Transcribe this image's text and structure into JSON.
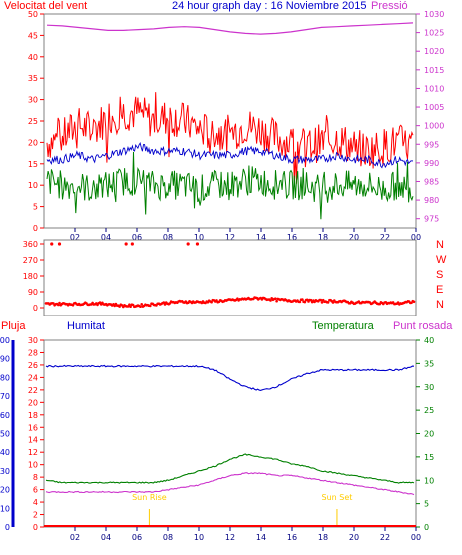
{
  "header": {
    "title": "24 hour graph day : 16 Noviembre 2015",
    "wind_speed_label": "Velocitat del vent",
    "pressure_label": "Pressió"
  },
  "panel2": {
    "directions": [
      "N",
      "W",
      "S",
      "E",
      "N"
    ]
  },
  "panel3": {
    "rain_label": "Pluja",
    "humidity_label": "Humitat",
    "temperature_label": "Temperatura",
    "dewpoint_label": "Punt rosada",
    "sunrise_label": "Sun Rise",
    "sunset_label": "Sun Set"
  },
  "colors": {
    "wind_gust": "#ff0000",
    "wind_avg": "#0000cc",
    "wind_min": "#008000",
    "pressure": "#cc33cc",
    "direction": "#ff0000",
    "humidity": "#0000cc",
    "temperature": "#008000",
    "dewpoint": "#cc33cc",
    "rain": "#ff0000",
    "sun": "#ffcc00"
  },
  "chart_data": [
    {
      "type": "line",
      "title": "24 hour graph day : 16 Noviembre 2015",
      "x_ticks": [
        "02",
        "04",
        "06",
        "08",
        "10",
        "12",
        "14",
        "16",
        "18",
        "20",
        "22",
        "00"
      ],
      "y_left": {
        "label": "Velocitat del vent",
        "ticks": [
          0,
          5,
          10,
          15,
          20,
          25,
          30,
          35,
          40,
          45,
          50
        ],
        "range": [
          0,
          50
        ]
      },
      "y_right": {
        "label": "Pressió",
        "ticks": [
          975,
          980,
          985,
          990,
          995,
          1000,
          1005,
          1010,
          1015,
          1020,
          1025,
          1030
        ],
        "range": [
          972.5,
          1030
        ]
      },
      "series": [
        {
          "name": "gust",
          "axis": "left",
          "values": [
            20,
            21,
            24,
            23,
            26,
            27,
            27,
            25,
            26,
            25,
            23,
            22,
            22,
            24,
            23,
            21,
            20,
            19,
            20,
            21,
            19,
            18,
            19,
            20,
            19
          ]
        },
        {
          "name": "average",
          "axis": "left",
          "values": [
            16,
            16,
            17,
            16,
            17,
            18,
            19,
            18,
            18,
            18,
            17,
            17,
            17,
            18,
            18,
            17,
            16,
            16,
            16,
            17,
            16,
            16,
            15,
            16,
            15
          ]
        },
        {
          "name": "minimum",
          "axis": "left",
          "values": [
            11,
            10,
            10,
            9,
            10,
            11,
            11,
            10,
            10,
            10,
            9,
            10,
            10,
            11,
            11,
            10,
            10,
            10,
            9,
            10,
            10,
            10,
            9,
            10,
            9
          ]
        },
        {
          "name": "pressure",
          "axis": "right",
          "values": [
            1027,
            1026.8,
            1026.4,
            1026,
            1025.6,
            1025.6,
            1025.8,
            1026,
            1026.4,
            1026.6,
            1026.4,
            1025.8,
            1025.2,
            1024.8,
            1024.6,
            1024.8,
            1025.2,
            1025.8,
            1026.4,
            1026.6,
            1026.8,
            1027,
            1027.2,
            1027.4,
            1027.6
          ]
        }
      ]
    },
    {
      "type": "scatter",
      "x_ticks": [
        "02",
        "04",
        "06",
        "08",
        "10",
        "12",
        "14",
        "16",
        "18",
        "20",
        "22",
        "00"
      ],
      "y_left": {
        "ticks": [
          0,
          90,
          180,
          270,
          360
        ],
        "range": [
          0,
          360
        ]
      },
      "series": [
        {
          "name": "direction",
          "x": [
            0.5,
            1.0,
            5.3,
            5.7,
            9.3,
            9.9
          ],
          "values": [
            360,
            360,
            360,
            360,
            360,
            360
          ]
        },
        {
          "name": "direction_main",
          "x": [
            0,
            1,
            2,
            3,
            4,
            5,
            6,
            7,
            8,
            9,
            10,
            11,
            12,
            13,
            14,
            15,
            16,
            17,
            18,
            19,
            20,
            21,
            22,
            23,
            24
          ],
          "values": [
            22,
            22,
            22,
            25,
            22,
            12,
            12,
            20,
            28,
            35,
            32,
            38,
            42,
            50,
            55,
            45,
            42,
            40,
            38,
            38,
            30,
            30,
            28,
            25,
            35
          ]
        }
      ]
    },
    {
      "type": "line",
      "x_ticks": [
        "02",
        "04",
        "06",
        "08",
        "10",
        "12",
        "14",
        "16",
        "18",
        "20",
        "22",
        "00"
      ],
      "y_outer": {
        "label": "Pluja",
        "ticks": [
          0,
          10,
          20,
          30,
          40,
          50,
          60,
          70,
          80,
          90,
          100
        ],
        "range": [
          0,
          100
        ]
      },
      "y_left": {
        "label": "Humitat",
        "ticks": [
          0,
          2,
          4,
          6,
          8,
          10,
          12,
          14,
          16,
          18,
          20,
          22,
          24,
          26,
          28,
          30
        ],
        "range": [
          0,
          30
        ]
      },
      "y_right": {
        "label": "Temperatura",
        "ticks": [
          0,
          5,
          10,
          15,
          20,
          25,
          30,
          35,
          40
        ],
        "range": [
          0,
          40
        ]
      },
      "sun_rise_hour": 6.8,
      "sun_set_hour": 18.9,
      "series": [
        {
          "name": "humidity",
          "axis": "outer",
          "values": [
            86,
            86,
            86,
            86,
            86,
            86,
            86,
            86,
            86,
            86,
            86,
            84,
            79,
            75,
            73,
            75,
            79,
            82,
            84,
            84,
            84,
            84,
            84,
            84,
            86
          ]
        },
        {
          "name": "temperature",
          "axis": "right",
          "values": [
            10,
            9.5,
            9.5,
            9.5,
            9.5,
            9.5,
            9.5,
            9.5,
            10,
            11,
            12,
            13,
            14.5,
            15.5,
            15,
            14.5,
            13.5,
            13,
            12,
            11.5,
            11,
            10.5,
            10,
            9.5,
            9.5
          ]
        },
        {
          "name": "dewpoint",
          "axis": "right",
          "values": [
            7.5,
            7.5,
            7.5,
            7.5,
            7.5,
            7.5,
            7.5,
            7.5,
            8,
            8.5,
            9,
            10,
            11,
            11.5,
            11.5,
            11,
            11,
            10.5,
            10,
            9.5,
            9,
            8.5,
            8,
            7.5,
            7
          ]
        },
        {
          "name": "rain",
          "axis": "outer",
          "values": [
            0,
            0,
            0,
            0,
            0,
            0,
            0,
            0,
            0,
            0,
            0,
            0,
            0,
            0,
            0,
            0,
            0,
            0,
            0,
            0,
            0,
            0,
            0,
            0,
            0
          ]
        }
      ]
    }
  ]
}
